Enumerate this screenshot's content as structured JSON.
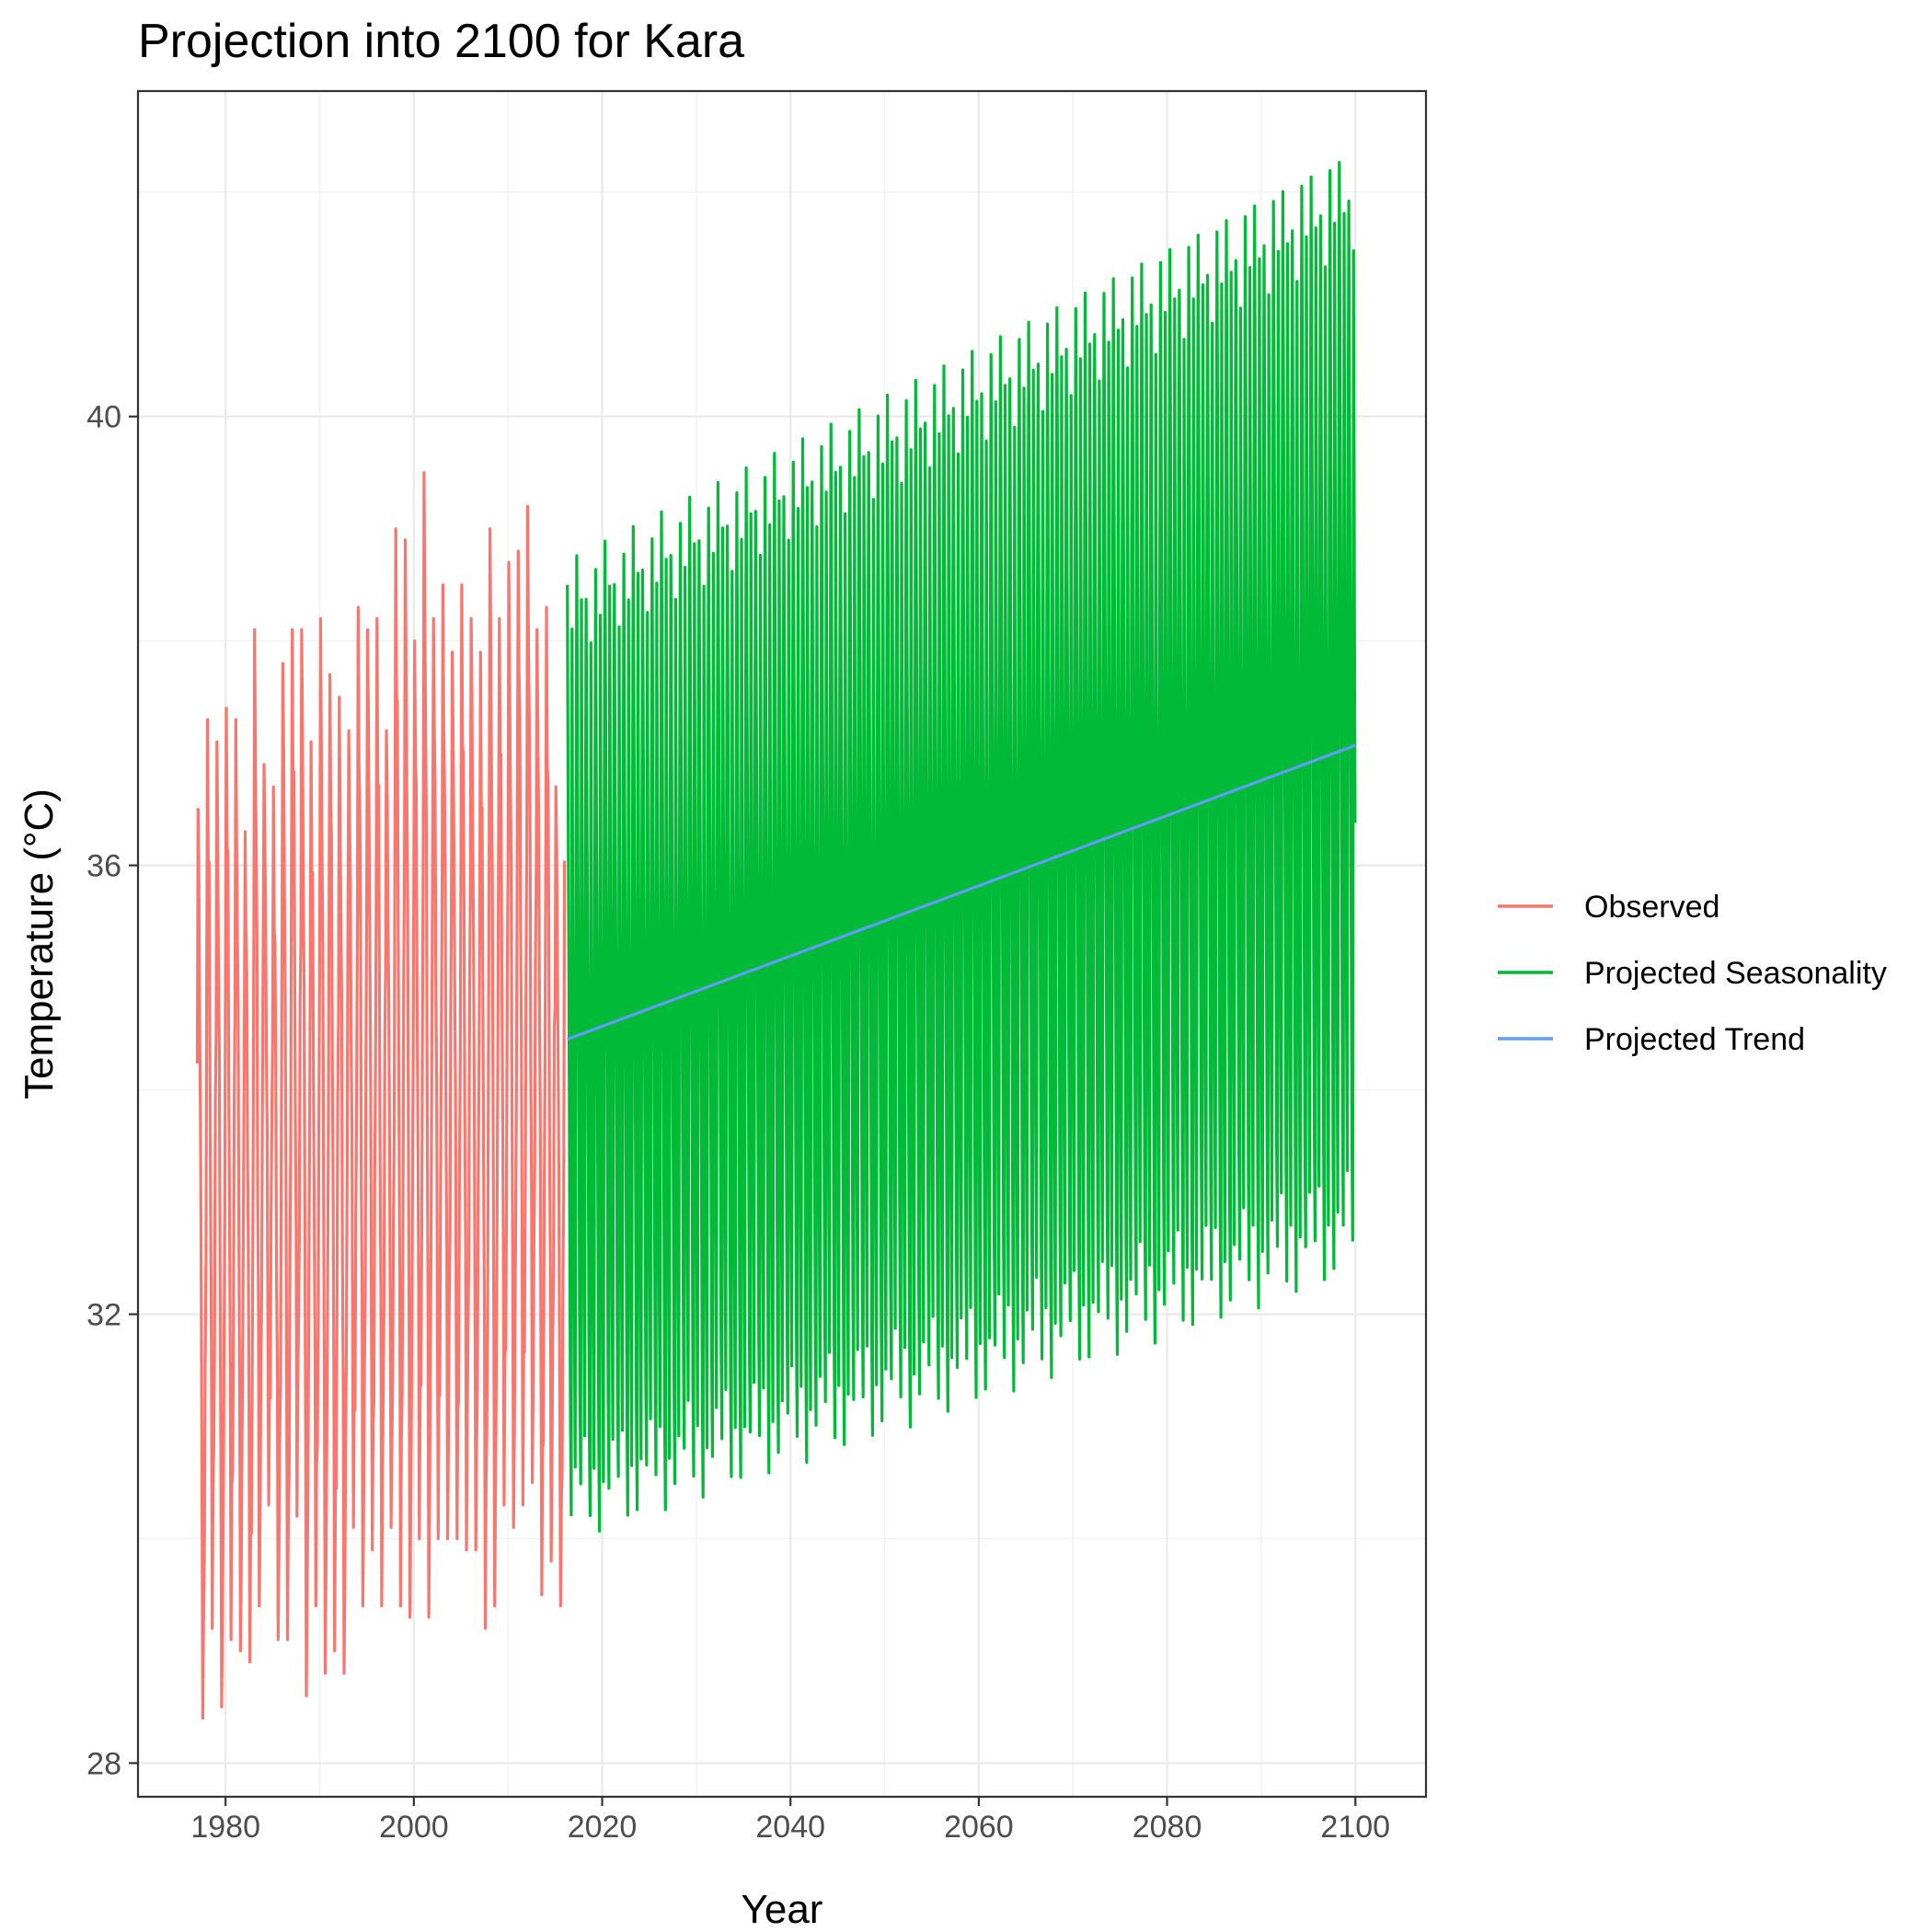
{
  "chart_data": {
    "type": "line",
    "title": "Projection into 2100 for Kara",
    "xlabel": "Year",
    "ylabel": "Temperature (°C)",
    "xlim": [
      1970.7,
      2107.5
    ],
    "ylim": [
      27.7,
      42.9
    ],
    "x_ticks": [
      1980,
      2000,
      2020,
      2040,
      2060,
      2080,
      2100
    ],
    "y_ticks": [
      28,
      32,
      36,
      40
    ],
    "grid": true,
    "legend_position": "right",
    "series": [
      {
        "name": "Observed",
        "color": "#F8766D",
        "x_start": 1977.0,
        "x_end": 2016.0,
        "points_per_year": 12,
        "seasonal_base": 33.9,
        "seasonal_amplitude": 3.8,
        "yearly_peaks": [
          36.5,
          37.3,
          37.1,
          37.4,
          37.3,
          36.3,
          38.1,
          36.9,
          36.7,
          37.8,
          38.1,
          38.1,
          37.1,
          38.2,
          37.7,
          37.5,
          37.2,
          38.3,
          38.1,
          38.2,
          37.2,
          39.0,
          38.9,
          38.0,
          39.5,
          38.2,
          38.5,
          37.9,
          38.5,
          38.2,
          37.9,
          39.0,
          38.2,
          38.7,
          38.8,
          39.2,
          38.1,
          38.3,
          36.7,
          38.3
        ],
        "yearly_troughs": [
          28.4,
          29.2,
          28.5,
          29.1,
          29.0,
          28.9,
          29.4,
          30.3,
          29.1,
          29.1,
          30.2,
          28.6,
          29.4,
          28.8,
          29.0,
          28.8,
          30.1,
          29.4,
          29.9,
          29.4,
          30.1,
          29.4,
          29.3,
          30.0,
          29.3,
          30.0,
          30.0,
          30.0,
          29.9,
          29.9,
          29.2,
          29.4,
          30.3,
          30.1,
          30.3,
          30.5,
          29.5,
          29.8,
          29.4,
          30.1
        ]
      },
      {
        "name": "Projected Seasonality",
        "color": "#00BA38",
        "x_start": 2016.3,
        "x_end": 2100.0,
        "points_per_year": 12,
        "peak_start": 38.5,
        "peak_end": 42.2,
        "trough_start": 30.2,
        "trough_end": 32.6,
        "upper_band_start": 36.4,
        "upper_band_end": 40.7,
        "lower_band_start": 32.6,
        "lower_band_end": 34.4
      },
      {
        "name": "Projected Trend",
        "color": "#619CFF",
        "x": [
          2016.3,
          2100.0
        ],
        "y": [
          34.45,
          37.07
        ]
      }
    ]
  }
}
